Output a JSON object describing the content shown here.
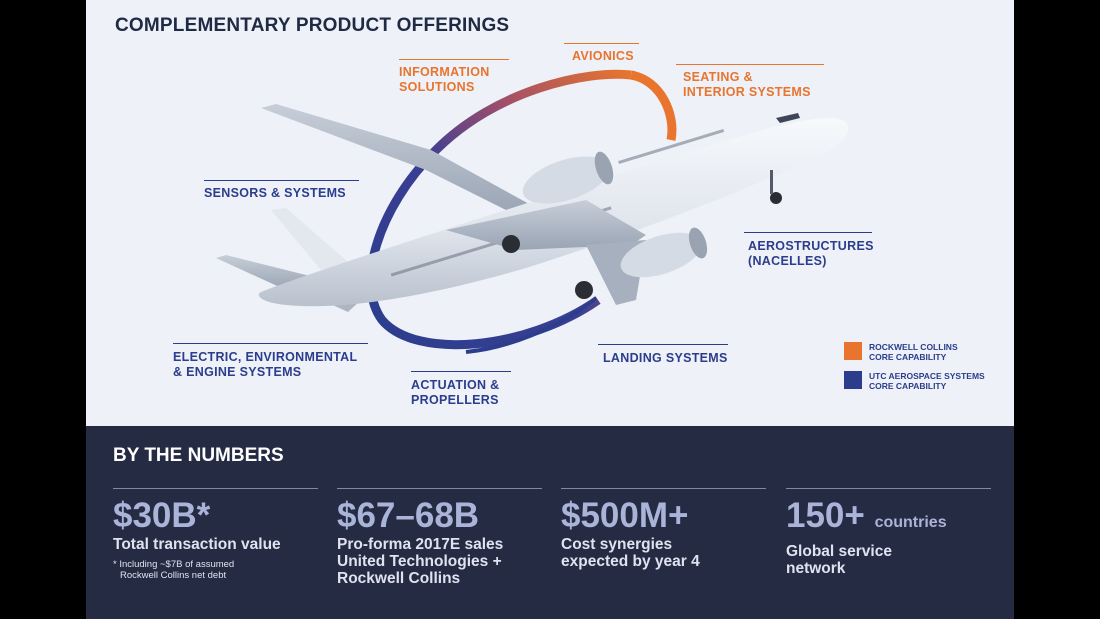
{
  "header": {
    "title": "COMPLEMENTARY PRODUCT OFFERINGS"
  },
  "labels": {
    "information_solutions": [
      "INFORMATION",
      "SOLUTIONS"
    ],
    "avionics": "AVIONICS",
    "seating": [
      "SEATING &",
      "INTERIOR SYSTEMS"
    ],
    "sensors": "SENSORS & SYSTEMS",
    "aerostructures": [
      "AEROSTRUCTURES",
      "(NACELLES)"
    ],
    "electric": [
      "ELECTRIC, ENVIRONMENTAL",
      "& ENGINE SYSTEMS"
    ],
    "actuation": [
      "ACTUATION &",
      "PROPELLERS"
    ],
    "landing": "LANDING SYSTEMS"
  },
  "legend": [
    {
      "line1": "ROCKWELL COLLINS",
      "line2": "CORE CAPABILITY",
      "color": "#e8742e"
    },
    {
      "line1": "UTC AEROSPACE SYSTEMS",
      "line2": "CORE CAPABILITY",
      "color": "#2b3d8c"
    }
  ],
  "numbers": {
    "heading": "BY THE NUMBERS",
    "items": [
      {
        "value": "$30B*",
        "suffix": "",
        "desc": "Total transaction value",
        "note": [
          "* Including ~$7B of assumed",
          "Rockwell Collins net debt"
        ]
      },
      {
        "value": "$67–68B",
        "suffix": "",
        "desc": [
          "Pro-forma 2017E sales",
          "United Technologies +",
          "Rockwell Collins"
        ]
      },
      {
        "value": "$500M+",
        "suffix": "",
        "desc": [
          "Cost synergies",
          "expected by year 4"
        ]
      },
      {
        "value": "150+",
        "suffix": "countries",
        "desc": [
          "Global service",
          "network"
        ]
      }
    ]
  }
}
